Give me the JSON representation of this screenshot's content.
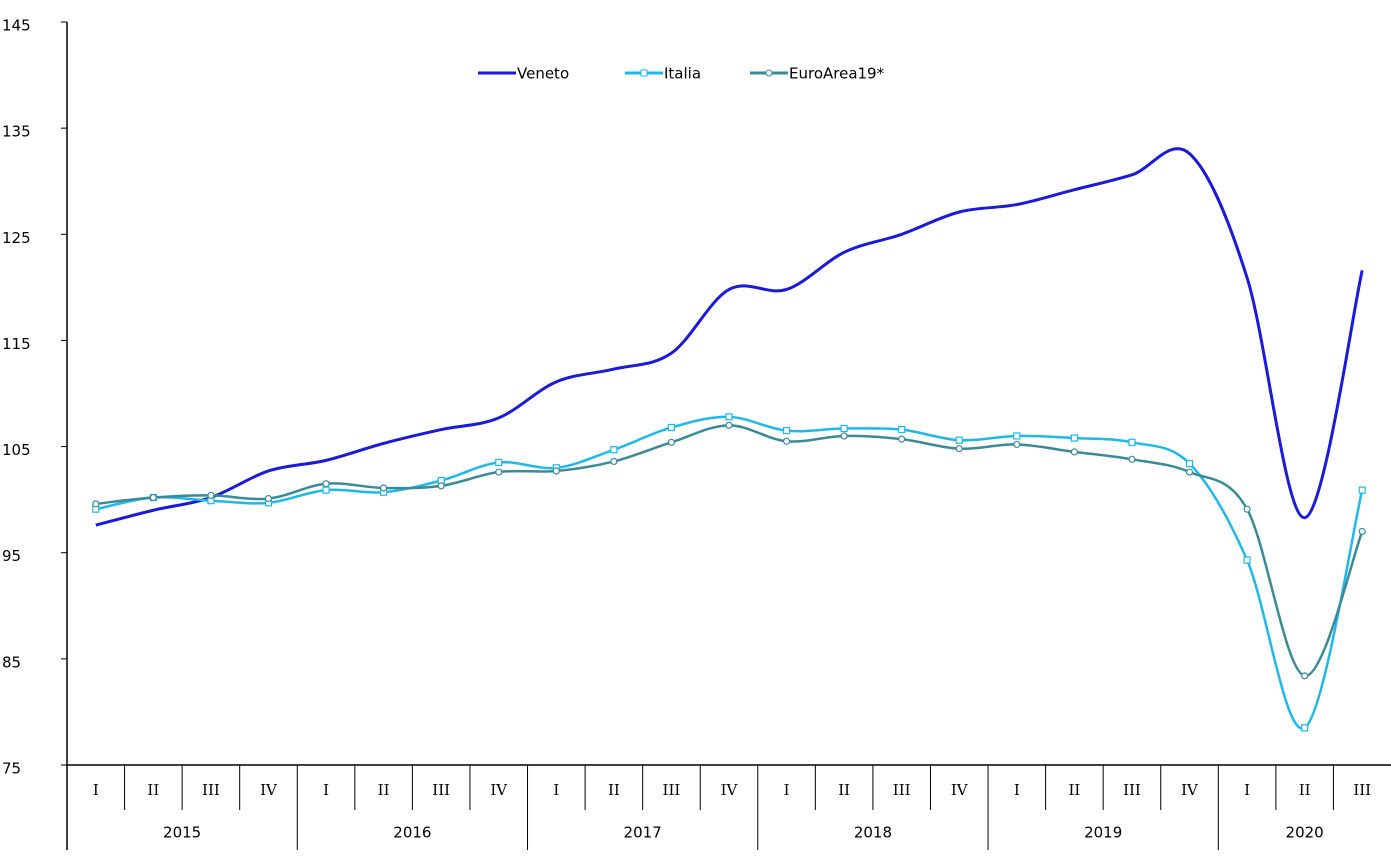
{
  "chart_data": {
    "type": "line",
    "categories": [
      [
        "2015",
        "I"
      ],
      [
        "2015",
        "II"
      ],
      [
        "2015",
        "III"
      ],
      [
        "2015",
        "IV"
      ],
      [
        "2016",
        "I"
      ],
      [
        "2016",
        "II"
      ],
      [
        "2016",
        "III"
      ],
      [
        "2016",
        "IV"
      ],
      [
        "2017",
        "I"
      ],
      [
        "2017",
        "II"
      ],
      [
        "2017",
        "III"
      ],
      [
        "2017",
        "IV"
      ],
      [
        "2018",
        "I"
      ],
      [
        "2018",
        "II"
      ],
      [
        "2018",
        "III"
      ],
      [
        "2018",
        "IV"
      ],
      [
        "2019",
        "I"
      ],
      [
        "2019",
        "II"
      ],
      [
        "2019",
        "III"
      ],
      [
        "2019",
        "IV"
      ],
      [
        "2020",
        "I"
      ],
      [
        "2020",
        "II"
      ],
      [
        "2020",
        "III"
      ]
    ],
    "series": [
      {
        "name": "Veneto",
        "color": "#1a1ad8",
        "marker": "none",
        "values": [
          97.6,
          99.0,
          100.2,
          102.7,
          103.7,
          105.3,
          106.6,
          107.7,
          111.1,
          112.3,
          113.8,
          119.8,
          119.8,
          123.3,
          125.0,
          127.1,
          127.8,
          129.2,
          130.6,
          132.6,
          120.9,
          98.3,
          121.6
        ]
      },
      {
        "name": "Italia",
        "color": "#1fb8e8",
        "marker": "square",
        "values": [
          99.1,
          100.2,
          99.9,
          99.7,
          100.9,
          100.7,
          101.8,
          103.5,
          103.0,
          104.7,
          106.8,
          107.8,
          106.5,
          106.7,
          106.6,
          105.6,
          106.0,
          105.8,
          105.4,
          103.4,
          94.3,
          78.5,
          100.9
        ]
      },
      {
        "name": "EuroArea19*",
        "color": "#3a8a98",
        "marker": "circle",
        "values": [
          99.6,
          100.2,
          100.4,
          100.1,
          101.5,
          101.1,
          101.3,
          102.6,
          102.7,
          103.6,
          105.4,
          107.0,
          105.5,
          106.0,
          105.7,
          104.8,
          105.2,
          104.5,
          103.8,
          102.6,
          99.1,
          83.4,
          97.0
        ]
      }
    ],
    "ylim": [
      75,
      145
    ],
    "yticks": [
      75,
      85,
      95,
      105,
      115,
      125,
      135,
      145
    ],
    "legend": "top"
  }
}
